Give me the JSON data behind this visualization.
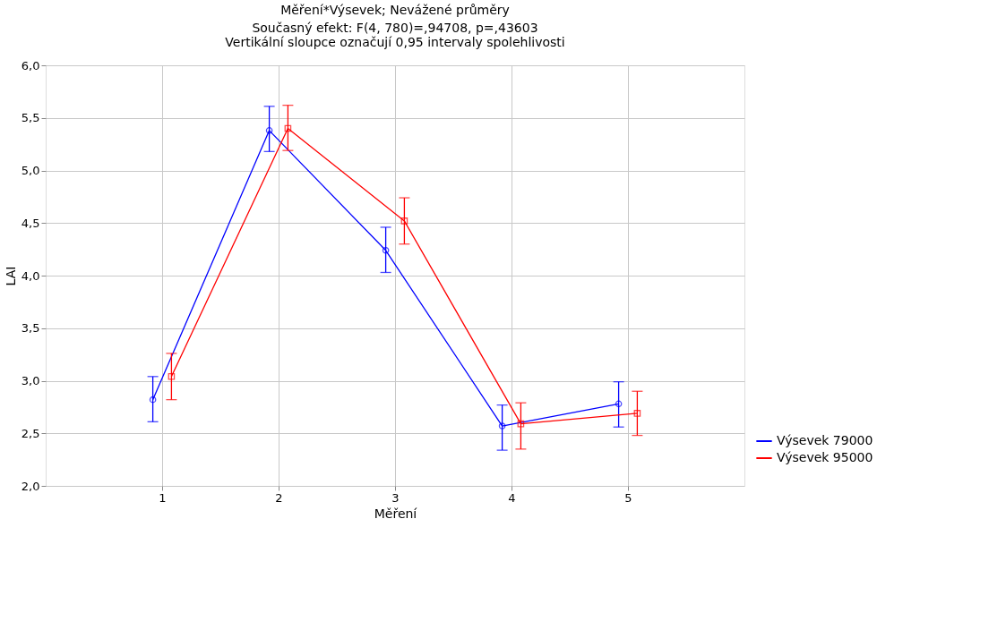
{
  "chart_data": {
    "type": "line",
    "title": "Měření*Výsevek; Nevážené průměry",
    "subtitle": "Současný efekt: F(4, 780)=,94708, p=,43603",
    "annotations": [
      "Vertikální sloupce označují 0,95 intervaly spolehlivosti"
    ],
    "xlabel": "Měření",
    "ylabel": "LAI",
    "xlim": [
      0,
      6
    ],
    "xticks": [
      1,
      2,
      3,
      4,
      5
    ],
    "ylim": [
      2.0,
      6.0
    ],
    "yticks": [
      {
        "value": 2.0,
        "label": "2,0"
      },
      {
        "value": 2.5,
        "label": "2,5"
      },
      {
        "value": 3.0,
        "label": "3,0"
      },
      {
        "value": 3.5,
        "label": "3,5"
      },
      {
        "value": 4.0,
        "label": "4,0"
      },
      {
        "value": 4.5,
        "label": "4,5"
      },
      {
        "value": 5.0,
        "label": "5,0"
      },
      {
        "value": 5.5,
        "label": "5,5"
      },
      {
        "value": 6.0,
        "label": "6,0"
      }
    ],
    "grid": true,
    "legend": "bottom right",
    "line_style": "solid",
    "series": [
      {
        "name": "Výsevek 79000",
        "color": "#0000ff",
        "marker": "circle",
        "x": [
          0.92,
          1.92,
          2.92,
          3.92,
          4.92
        ],
        "values": [
          2.82,
          5.38,
          4.24,
          2.57,
          2.78
        ],
        "errors": [
          [
            2.61,
            3.04
          ],
          [
            5.18,
            5.61
          ],
          [
            4.03,
            4.46
          ],
          [
            2.34,
            2.77
          ],
          [
            2.56,
            2.99
          ]
        ]
      },
      {
        "name": "Výsevek 95000",
        "color": "#ff0000",
        "marker": "square",
        "x": [
          1.08,
          2.08,
          3.08,
          4.08,
          5.08
        ],
        "values": [
          3.04,
          5.4,
          4.52,
          2.59,
          2.69
        ],
        "errors": [
          [
            2.82,
            3.26
          ],
          [
            5.19,
            5.62
          ],
          [
            4.3,
            4.74
          ],
          [
            2.35,
            2.79
          ],
          [
            2.48,
            2.9
          ]
        ]
      }
    ]
  }
}
